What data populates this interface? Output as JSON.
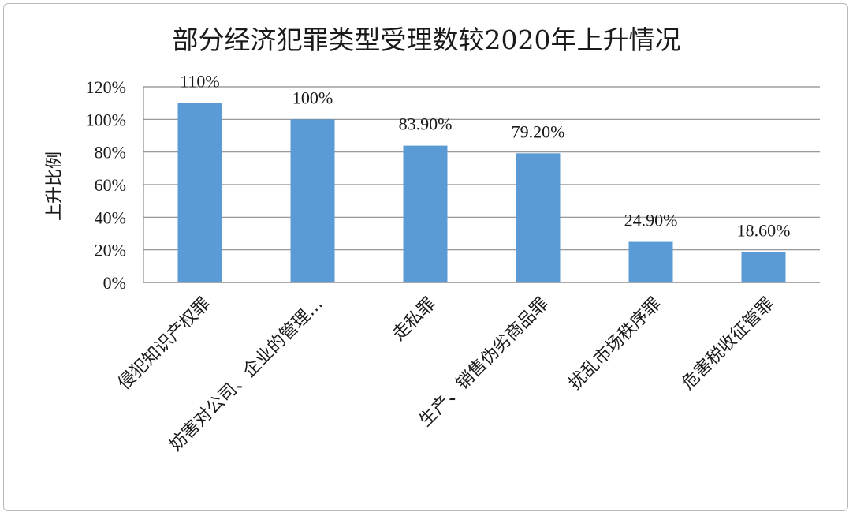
{
  "chart_data": {
    "type": "bar",
    "title": "部分经济犯罪类型受理数较2020年上升情况",
    "xlabel": "",
    "ylabel": "上升比例",
    "categories": [
      "侵犯知识产权罪",
      "妨害对公司、企业的管理…",
      "走私罪",
      "生产、销售伪劣商品罪",
      "扰乱市场秩序罪",
      "危害税收征管罪"
    ],
    "values": [
      110,
      100,
      83.9,
      79.2,
      24.9,
      18.6
    ],
    "data_labels": [
      "110%",
      "100%",
      "83.90%",
      "79.20%",
      "24.90%",
      "18.60%"
    ],
    "y_ticks": [
      "0%",
      "20%",
      "40%",
      "60%",
      "80%",
      "100%",
      "120%"
    ],
    "ylim": [
      0,
      120
    ],
    "grid": true,
    "legend": "none",
    "colors": {
      "bar": "#5b9bd5",
      "grid": "#8c8c8c",
      "text": "#1a1a1a"
    }
  }
}
